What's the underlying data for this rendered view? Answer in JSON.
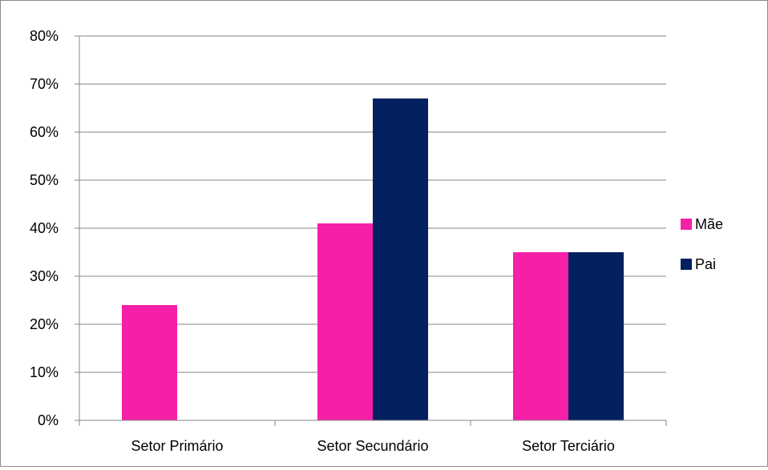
{
  "chart_data": {
    "type": "bar",
    "categories": [
      "Setor Primário",
      "Setor Secundário",
      "Setor Terciário"
    ],
    "series": [
      {
        "name": "Mãe",
        "values": [
          0.24,
          0.41,
          0.35
        ],
        "color": "#f51fa8"
      },
      {
        "name": "Pai",
        "values": [
          0.0,
          0.67,
          0.35
        ],
        "color": "#032060"
      }
    ],
    "y_ticks": [
      "0%",
      "10%",
      "20%",
      "30%",
      "40%",
      "50%",
      "60%",
      "70%",
      "80%"
    ],
    "ylim": [
      0,
      0.8
    ],
    "grid": true,
    "legend_position": "right"
  }
}
